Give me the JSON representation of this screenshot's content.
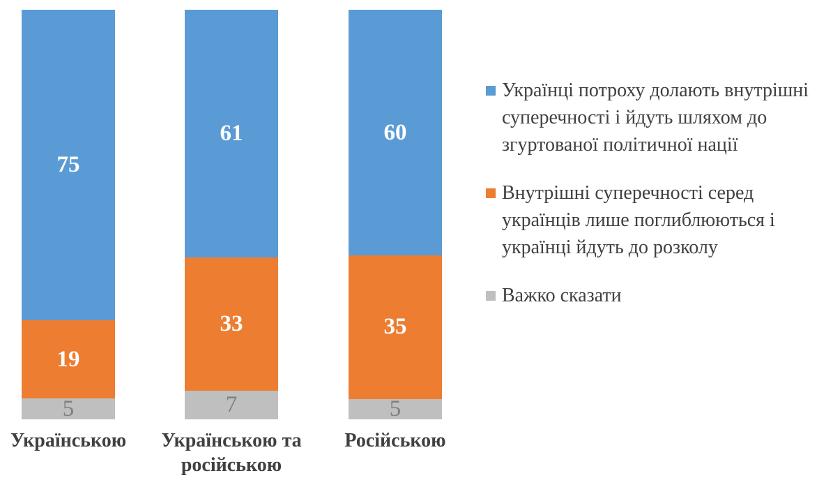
{
  "chart_data": {
    "type": "bar",
    "subtype": "stacked-100-percent",
    "orientation": "vertical",
    "title": "",
    "xlabel": "",
    "ylabel": "",
    "grid": false,
    "axes_visible": false,
    "legend_position": "right",
    "background": "#FFFFFF",
    "text_color": "#404040",
    "categories": [
      "Українською",
      "Українською та російською",
      "Російською"
    ],
    "series": [
      {
        "name": "Українці потроху долають внутрішні суперечності і йдуть шляхом до згуртованої політичної нації",
        "color": "#5B9BD5",
        "label_color": "#FFFFFF",
        "label_bold": true,
        "values": [
          75,
          61,
          60
        ]
      },
      {
        "name": "Внутрішні суперечності серед українців лише поглиблюються і українці йдуть до розколу",
        "color": "#ED7D31",
        "label_color": "#FFFFFF",
        "label_bold": true,
        "values": [
          19,
          33,
          35
        ]
      },
      {
        "name": "Важко сказати",
        "color": "#BFBFBF",
        "label_color": "#7F7F7F",
        "label_bold": false,
        "values": [
          5,
          7,
          5
        ]
      }
    ]
  }
}
